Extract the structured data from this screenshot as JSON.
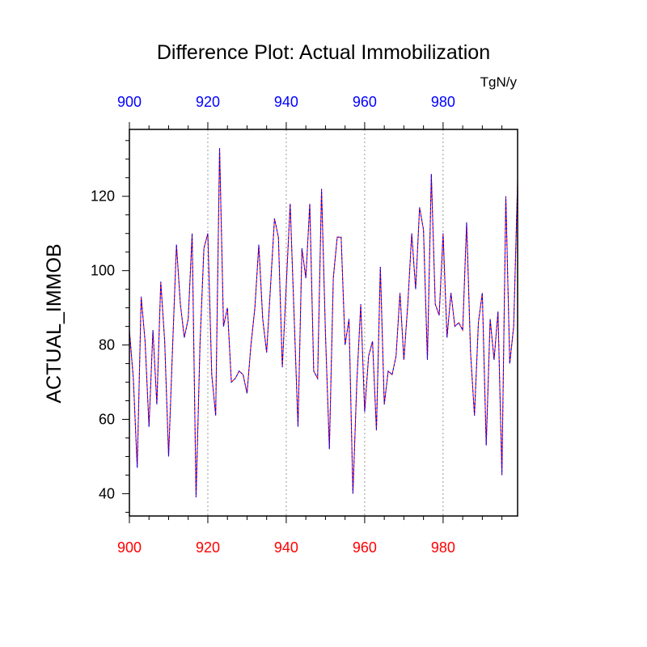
{
  "chart_data": {
    "type": "line",
    "title": "Difference Plot: Actual Immobilization",
    "ylabel": "ACTUAL_IMMOB",
    "units": "TgN/y",
    "xlim": [
      900,
      999
    ],
    "ylim": [
      34,
      138
    ],
    "x_ticks": [
      "900",
      "920",
      "940",
      "960",
      "980"
    ],
    "y_ticks": [
      "40",
      "60",
      "80",
      "100",
      "120"
    ],
    "grid": "vertical dotted",
    "colors": {
      "series_a": "#0000ff",
      "series_b": "#ff0000",
      "bottom_axis": "#ff0000",
      "top_axis": "#0000ff",
      "grid": "#999999"
    },
    "x": [
      900,
      901,
      902,
      903,
      904,
      905,
      906,
      907,
      908,
      909,
      910,
      911,
      912,
      913,
      914,
      915,
      916,
      917,
      918,
      919,
      920,
      921,
      922,
      923,
      924,
      925,
      926,
      927,
      928,
      929,
      930,
      931,
      932,
      933,
      934,
      935,
      936,
      937,
      938,
      939,
      940,
      941,
      942,
      943,
      944,
      945,
      946,
      947,
      948,
      949,
      950,
      951,
      952,
      953,
      954,
      955,
      956,
      957,
      958,
      959,
      960,
      961,
      962,
      963,
      964,
      965,
      966,
      967,
      968,
      969,
      970,
      971,
      972,
      973,
      974,
      975,
      976,
      977,
      978,
      979,
      980,
      981,
      982,
      983,
      984,
      985,
      986,
      987,
      988,
      989,
      990,
      991,
      992,
      993,
      994,
      995,
      996,
      997,
      998,
      999
    ],
    "series": [
      {
        "values": [
          84,
          71,
          47,
          93,
          81,
          58,
          84,
          64,
          97,
          81,
          50,
          79,
          107,
          91,
          82,
          87,
          110,
          39,
          80,
          106,
          110,
          72,
          61,
          133,
          85,
          90,
          70,
          71,
          73,
          72,
          67,
          80,
          90,
          107,
          87,
          78,
          96,
          114,
          109,
          74,
          96,
          118,
          88,
          58,
          106,
          98,
          118,
          73,
          71,
          122,
          83,
          52,
          98,
          109,
          109,
          80,
          87,
          40,
          70,
          91,
          62,
          77,
          81,
          57,
          101,
          64,
          73,
          72,
          77,
          94,
          76,
          91,
          110,
          95,
          117,
          111,
          76,
          126,
          91,
          88,
          110,
          82,
          94,
          85,
          86,
          84,
          113,
          78,
          61,
          86,
          94,
          53,
          87,
          76,
          89,
          45,
          120,
          75,
          85,
          124
        ]
      },
      {
        "values": [
          84,
          71,
          47,
          93,
          81,
          58,
          84,
          64,
          97,
          81,
          50,
          79,
          107,
          91,
          82,
          87,
          110,
          39,
          80,
          106,
          110,
          72,
          61,
          133,
          85,
          90,
          70,
          71,
          73,
          72,
          67,
          80,
          90,
          107,
          87,
          78,
          96,
          114,
          109,
          74,
          96,
          118,
          88,
          58,
          106,
          98,
          118,
          73,
          71,
          122,
          83,
          52,
          98,
          109,
          109,
          80,
          87,
          40,
          70,
          91,
          62,
          77,
          81,
          57,
          101,
          64,
          73,
          72,
          77,
          94,
          76,
          91,
          110,
          95,
          117,
          111,
          76,
          126,
          91,
          88,
          110,
          82,
          94,
          85,
          86,
          84,
          113,
          78,
          61,
          86,
          94,
          53,
          87,
          76,
          89,
          45,
          120,
          75,
          85,
          124
        ]
      }
    ]
  }
}
